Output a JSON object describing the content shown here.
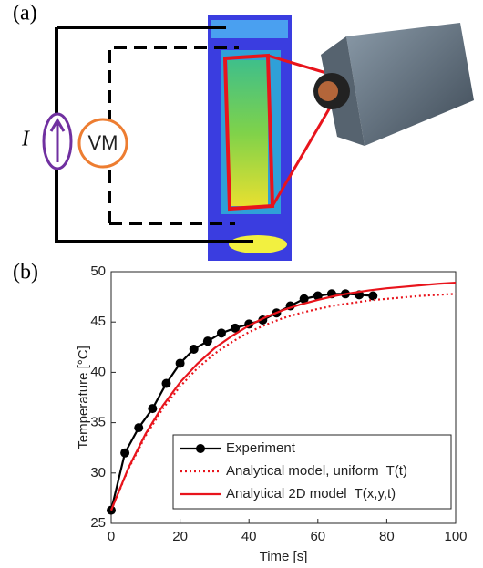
{
  "figure": {
    "panel_a": {
      "label": "(a)",
      "current_label": "I",
      "meter_label": "VM"
    },
    "panel_b": {
      "label": "(b)"
    }
  },
  "chart_data": {
    "type": "line",
    "xlabel": "Time [s]",
    "ylabel": "Temperature [°C]",
    "xlim": [
      0,
      100
    ],
    "ylim": [
      25,
      50
    ],
    "xticks": [
      0,
      20,
      40,
      60,
      80,
      100
    ],
    "yticks": [
      25,
      30,
      35,
      40,
      45,
      50
    ],
    "legend": "lower right",
    "series": [
      {
        "name": "Experiment",
        "color": "#000000",
        "line_style": "solid",
        "marker": true,
        "x": [
          0,
          4,
          8,
          12,
          16,
          20,
          24,
          28,
          32,
          36,
          40,
          44,
          48,
          52,
          56,
          60,
          64,
          68,
          72,
          76
        ],
        "values": [
          26.3,
          32.0,
          34.5,
          36.4,
          38.9,
          40.9,
          42.3,
          43.1,
          43.9,
          44.4,
          44.8,
          45.2,
          45.9,
          46.6,
          47.3,
          47.6,
          47.8,
          47.8,
          47.7,
          47.6
        ]
      },
      {
        "name": "Analytical model, uniform  T(t)",
        "color": "#e8141c",
        "line_style": "dotted",
        "marker": false,
        "x": [
          0,
          5,
          10,
          15,
          20,
          25,
          30,
          35,
          40,
          45,
          50,
          55,
          60,
          65,
          70,
          75,
          80,
          85,
          90,
          95,
          100
        ],
        "values": [
          26.3,
          30.4,
          33.7,
          36.4,
          38.6,
          40.4,
          41.85,
          43.0,
          44.0,
          44.75,
          45.4,
          45.9,
          46.3,
          46.65,
          46.9,
          47.15,
          47.3,
          47.45,
          47.6,
          47.7,
          47.8
        ]
      },
      {
        "name": "Analytical 2D model  T(x,y,t)",
        "color": "#e8141c",
        "line_style": "solid",
        "marker": false,
        "x": [
          0,
          5,
          10,
          15,
          20,
          25,
          30,
          35,
          40,
          45,
          50,
          55,
          60,
          65,
          70,
          75,
          80,
          85,
          90,
          95,
          100
        ],
        "values": [
          26.3,
          30.5,
          33.9,
          36.7,
          39.0,
          40.85,
          42.4,
          43.6,
          44.65,
          45.5,
          46.2,
          46.75,
          47.2,
          47.6,
          47.9,
          48.15,
          48.35,
          48.5,
          48.65,
          48.8,
          48.9
        ]
      }
    ]
  }
}
